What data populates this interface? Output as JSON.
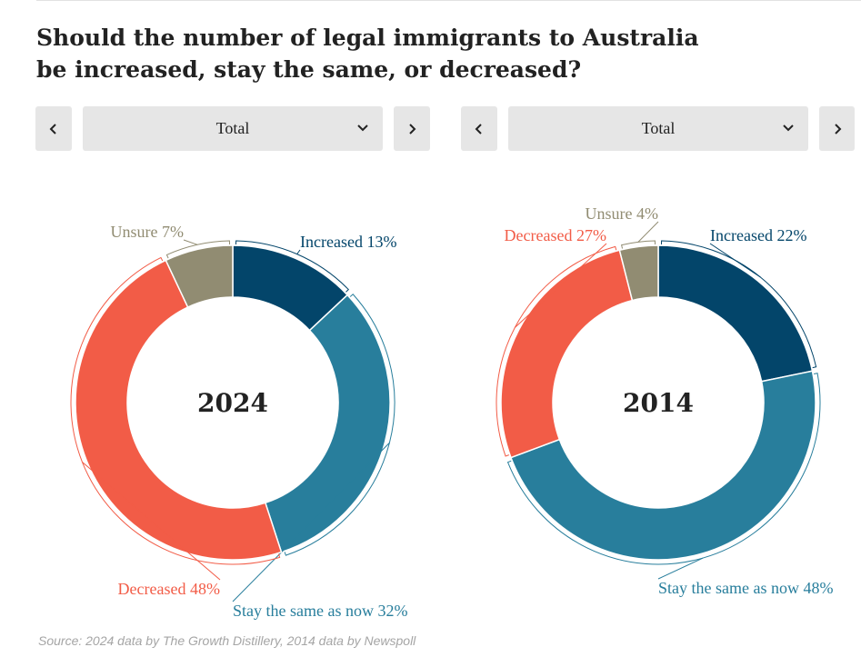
{
  "title_lines": [
    "Should the number of legal immigrants to Australia",
    "be increased, stay the same, or decreased?"
  ],
  "controls": [
    {
      "prev_icon": "chevron-left-icon",
      "selected": "Total",
      "dropdown_icon": "chevron-down-icon",
      "next_icon": "chevron-right-icon"
    },
    {
      "prev_icon": "chevron-left-icon",
      "selected": "Total",
      "dropdown_icon": "chevron-down-icon",
      "next_icon": "chevron-right-icon"
    }
  ],
  "source": "Source: 2024 data by The Growth Distillery, 2014 data by Newspoll",
  "colors": {
    "Increased": "#03456a",
    "Stay the same as now": "#287e9c",
    "Decreased": "#f25c47",
    "Unsure": "#918c72"
  },
  "chart_data": [
    {
      "type": "pie",
      "donut": true,
      "center_label": "2024",
      "slices": [
        {
          "name": "Increased",
          "value": 13,
          "label": "Increased 13%"
        },
        {
          "name": "Stay the same as now",
          "value": 32,
          "label": "Stay the same as now 32%"
        },
        {
          "name": "Decreased",
          "value": 48,
          "label": "Decreased 48%"
        },
        {
          "name": "Unsure",
          "value": 7,
          "label": "Unsure 7%"
        }
      ]
    },
    {
      "type": "pie",
      "donut": true,
      "center_label": "2014",
      "slices": [
        {
          "name": "Increased",
          "value": 22,
          "label": "Increased 22%"
        },
        {
          "name": "Stay the same as now",
          "value": 48,
          "label": "Stay the same as now 48%"
        },
        {
          "name": "Decreased",
          "value": 27,
          "label": "Decreased 27%"
        },
        {
          "name": "Unsure",
          "value": 4,
          "label": "Unsure 4%"
        }
      ]
    }
  ]
}
